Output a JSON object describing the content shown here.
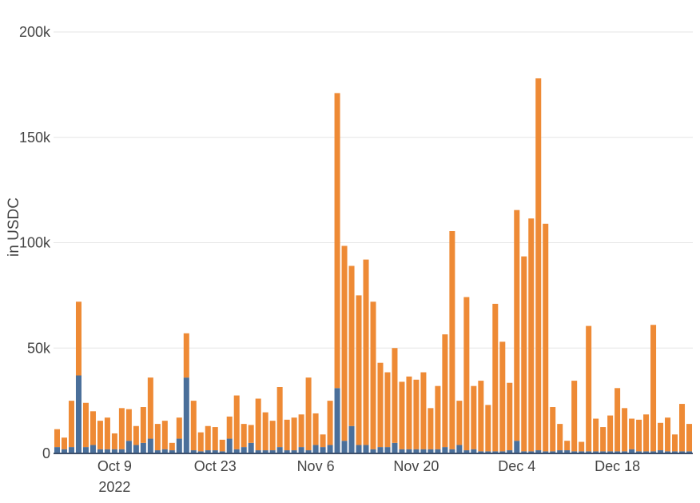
{
  "chart_data": {
    "type": "bar",
    "stacked": true,
    "ylabel": "in USDC",
    "ylim": [
      0,
      200000
    ],
    "yticks": [
      0,
      50000,
      100000,
      150000,
      200000
    ],
    "ytick_labels": [
      "0",
      "50k",
      "100k",
      "150k",
      "200k"
    ],
    "x_start": "2022-10-01",
    "x_end": "2022-12-28",
    "xticks": [
      {
        "date": "2022-10-09",
        "label": "Oct 9",
        "sublabel": "2022"
      },
      {
        "date": "2022-10-23",
        "label": "Oct 23"
      },
      {
        "date": "2022-11-06",
        "label": "Nov 6"
      },
      {
        "date": "2022-11-20",
        "label": "Nov 20"
      },
      {
        "date": "2022-12-04",
        "label": "Dec 4"
      },
      {
        "date": "2022-12-18",
        "label": "Dec 18"
      }
    ],
    "grid": true,
    "colors": {
      "bottom": "#4a6f9a",
      "top": "#ee8a35",
      "grid": "#e6e6e6"
    },
    "dates": [
      "2022-10-01",
      "2022-10-02",
      "2022-10-03",
      "2022-10-04",
      "2022-10-05",
      "2022-10-06",
      "2022-10-07",
      "2022-10-08",
      "2022-10-09",
      "2022-10-10",
      "2022-10-11",
      "2022-10-12",
      "2022-10-13",
      "2022-10-14",
      "2022-10-15",
      "2022-10-16",
      "2022-10-17",
      "2022-10-18",
      "2022-10-19",
      "2022-10-20",
      "2022-10-21",
      "2022-10-22",
      "2022-10-23",
      "2022-10-24",
      "2022-10-25",
      "2022-10-26",
      "2022-10-27",
      "2022-10-28",
      "2022-10-29",
      "2022-10-30",
      "2022-10-31",
      "2022-11-01",
      "2022-11-02",
      "2022-11-03",
      "2022-11-04",
      "2022-11-05",
      "2022-11-06",
      "2022-11-07",
      "2022-11-08",
      "2022-11-09",
      "2022-11-10",
      "2022-11-11",
      "2022-11-12",
      "2022-11-13",
      "2022-11-14",
      "2022-11-15",
      "2022-11-16",
      "2022-11-17",
      "2022-11-18",
      "2022-11-19",
      "2022-11-20",
      "2022-11-21",
      "2022-11-22",
      "2022-11-23",
      "2022-11-24",
      "2022-11-25",
      "2022-11-26",
      "2022-11-27",
      "2022-11-28",
      "2022-11-29",
      "2022-11-30",
      "2022-12-01",
      "2022-12-02",
      "2022-12-03",
      "2022-12-04",
      "2022-12-05",
      "2022-12-06",
      "2022-12-07",
      "2022-12-08",
      "2022-12-09",
      "2022-12-10",
      "2022-12-11",
      "2022-12-12",
      "2022-12-13",
      "2022-12-14",
      "2022-12-15",
      "2022-12-16",
      "2022-12-17",
      "2022-12-18",
      "2022-12-19",
      "2022-12-20",
      "2022-12-21",
      "2022-12-22",
      "2022-12-23",
      "2022-12-24",
      "2022-12-25",
      "2022-12-26",
      "2022-12-27",
      "2022-12-28"
    ],
    "series": [
      {
        "color": "#4a6f9a",
        "values": [
          3000,
          2000,
          3000,
          37000,
          3000,
          4000,
          2000,
          2000,
          2000,
          2000,
          6000,
          4000,
          5000,
          7000,
          1500,
          2000,
          1500,
          7000,
          36000,
          1500,
          1000,
          1500,
          1500,
          1000,
          7000,
          2000,
          3000,
          5000,
          1500,
          1500,
          1500,
          3000,
          1500,
          1500,
          3000,
          1500,
          4000,
          3000,
          4000,
          31000,
          6000,
          13000,
          4000,
          4000,
          2000,
          3000,
          3000,
          5000,
          2000,
          2000,
          2000,
          2000,
          2000,
          2000,
          3000,
          2000,
          4000,
          1500,
          2000,
          1000,
          1000,
          1000,
          1000,
          1500,
          6000,
          1000,
          1000,
          1500,
          1000,
          1000,
          1500,
          1500,
          1000,
          1000,
          1000,
          1000,
          1000,
          1000,
          1000,
          1000,
          2000,
          1000,
          1000,
          1000,
          1500,
          1000,
          1000,
          1000,
          1000
        ]
      },
      {
        "color": "#ee8a35",
        "values": [
          8500,
          5500,
          22000,
          35000,
          21000,
          16000,
          13500,
          15000,
          7500,
          19500,
          15000,
          9000,
          17000,
          29000,
          12500,
          13500,
          3500,
          10000,
          21000,
          23500,
          9000,
          11500,
          11000,
          5500,
          10500,
          25500,
          11000,
          8500,
          24500,
          18000,
          14000,
          28500,
          14500,
          15500,
          15500,
          34500,
          15000,
          6000,
          21000,
          140000,
          92500,
          76000,
          71000,
          88000,
          70000,
          40000,
          35500,
          45000,
          32000,
          34500,
          33000,
          36500,
          19500,
          30000,
          53500,
          103500,
          21000,
          72700,
          30000,
          33500,
          22000,
          70000,
          52000,
          32000,
          109500,
          92500,
          110500,
          176500,
          108000,
          21000,
          12500,
          4500,
          33500,
          4500,
          59500,
          15500,
          11500,
          17000,
          30000,
          20500,
          14500,
          15000,
          17500,
          60000,
          13000,
          16000,
          8000,
          22500,
          13000
        ]
      }
    ]
  }
}
